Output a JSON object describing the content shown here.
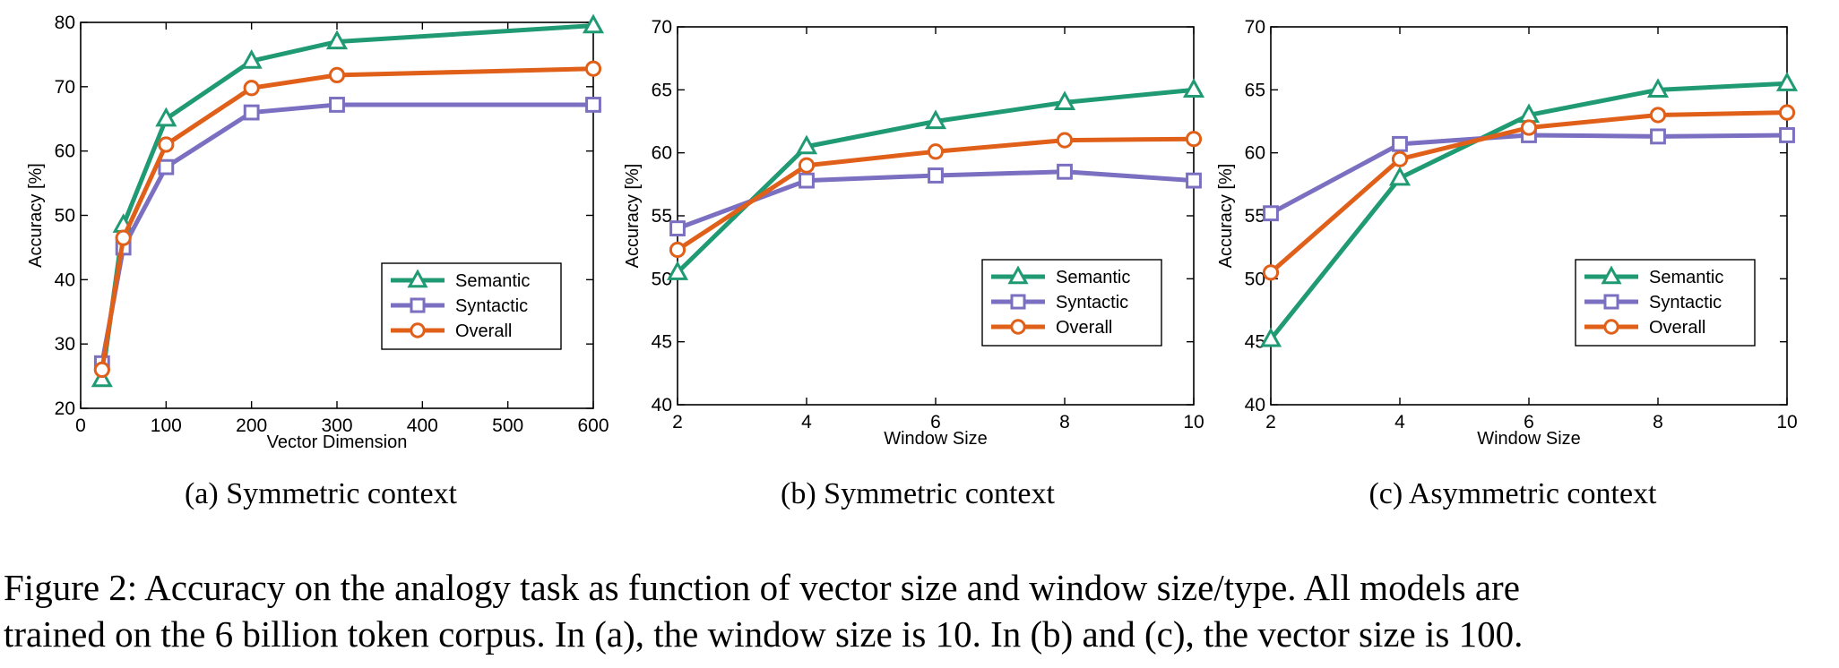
{
  "colors": {
    "semantic": "#1f9a73",
    "syntactic": "#7a6fc0",
    "overall": "#e0601a"
  },
  "caption": {
    "line1": "Figure 2: Accuracy on the analogy task as function of vector size and window size/type. All models are",
    "line2": "trained on the 6 billion token corpus. In (a), the window size is 10. In (b) and (c), the vector size is 100."
  },
  "chart_data": [
    {
      "type": "line",
      "subcaption": "(a)  Symmetric context",
      "xlabel": "Vector Dimension",
      "ylabel": "Accuracy [%]",
      "xlim": [
        0,
        600
      ],
      "ylim": [
        20,
        80
      ],
      "xticks": [
        0,
        100,
        200,
        300,
        400,
        500,
        600
      ],
      "yticks": [
        20,
        30,
        40,
        50,
        60,
        70,
        80
      ],
      "x": [
        25,
        50,
        100,
        200,
        300,
        600
      ],
      "grid": false,
      "legend": "lower-right",
      "series": [
        {
          "name": "Semantic",
          "marker": "triangle",
          "values": [
            24.5,
            48.5,
            65,
            74,
            77,
            79.5
          ]
        },
        {
          "name": "Syntactic",
          "marker": "square",
          "values": [
            27,
            45,
            57.5,
            66,
            67.2,
            67.2
          ]
        },
        {
          "name": "Overall",
          "marker": "circle",
          "values": [
            26,
            46.5,
            61,
            69.8,
            71.8,
            72.8
          ]
        }
      ]
    },
    {
      "type": "line",
      "subcaption": "(b)  Symmetric context",
      "xlabel": "Window Size",
      "ylabel": "Accuracy [%]",
      "xlim": [
        2,
        10
      ],
      "ylim": [
        40,
        70
      ],
      "xticks": [
        2,
        4,
        6,
        8,
        10
      ],
      "yticks": [
        40,
        45,
        50,
        55,
        60,
        65,
        70
      ],
      "x": [
        2,
        4,
        6,
        8,
        10
      ],
      "grid": false,
      "legend": "lower-right",
      "series": [
        {
          "name": "Semantic",
          "marker": "triangle",
          "values": [
            50.5,
            60.5,
            62.5,
            64,
            65
          ]
        },
        {
          "name": "Syntactic",
          "marker": "square",
          "values": [
            54,
            57.8,
            58.2,
            58.5,
            57.8
          ]
        },
        {
          "name": "Overall",
          "marker": "circle",
          "values": [
            52.3,
            59,
            60.1,
            61,
            61.1
          ]
        }
      ]
    },
    {
      "type": "line",
      "subcaption": "(c)  Asymmetric context",
      "xlabel": "Window Size",
      "ylabel": "Accuracy [%]",
      "xlim": [
        2,
        10
      ],
      "ylim": [
        40,
        70
      ],
      "xticks": [
        2,
        4,
        6,
        8,
        10
      ],
      "yticks": [
        40,
        45,
        50,
        55,
        60,
        65,
        70
      ],
      "x": [
        2,
        4,
        6,
        8,
        10
      ],
      "grid": false,
      "legend": "lower-right",
      "series": [
        {
          "name": "Semantic",
          "marker": "triangle",
          "values": [
            45.2,
            58,
            63,
            65,
            65.5
          ]
        },
        {
          "name": "Syntactic",
          "marker": "square",
          "values": [
            55.2,
            60.7,
            61.4,
            61.3,
            61.4
          ]
        },
        {
          "name": "Overall",
          "marker": "circle",
          "values": [
            50.5,
            59.5,
            62,
            63,
            63.2
          ]
        }
      ]
    }
  ]
}
